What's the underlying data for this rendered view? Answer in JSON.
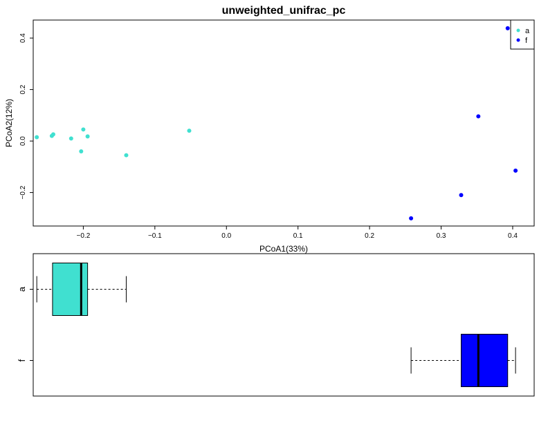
{
  "chart_data": [
    {
      "type": "scatter",
      "title": "unweighted_unifrac_pc",
      "xlabel": "PCoA1(33%)",
      "ylabel": "PCoA2(12%)",
      "xlim": [
        -0.27,
        0.43
      ],
      "ylim": [
        -0.33,
        0.47
      ],
      "xticks": [
        -0.2,
        -0.1,
        0.0,
        0.1,
        0.2,
        0.3,
        0.4
      ],
      "xtick_labels": [
        "−0.2",
        "−0.1",
        "0.0",
        "0.1",
        "0.2",
        "0.3",
        "0.4"
      ],
      "yticks": [
        -0.2,
        0.0,
        0.2,
        0.4
      ],
      "ytick_labels": [
        "−0.2",
        "0.0",
        "0.2",
        "0.4"
      ],
      "legend_position": "top-right",
      "grid": false,
      "series": [
        {
          "name": "a",
          "color": "#40E0D0",
          "points": [
            [
              -0.265,
              0.015
            ],
            [
              -0.244,
              0.02
            ],
            [
              -0.242,
              0.026
            ],
            [
              -0.217,
              0.01
            ],
            [
              -0.203,
              -0.04
            ],
            [
              -0.2,
              0.045
            ],
            [
              -0.194,
              0.018
            ],
            [
              -0.14,
              -0.055
            ],
            [
              -0.052,
              0.04
            ]
          ]
        },
        {
          "name": "f",
          "color": "#0000FF",
          "points": [
            [
              0.258,
              -0.3
            ],
            [
              0.328,
              -0.21
            ],
            [
              0.352,
              0.096
            ],
            [
              0.393,
              0.438
            ],
            [
              0.404,
              -0.115
            ]
          ]
        }
      ]
    },
    {
      "type": "boxplot",
      "orientation": "horizontal",
      "xlim": [
        -0.27,
        0.43
      ],
      "categories": [
        "a",
        "f"
      ],
      "boxes": [
        {
          "category": "a",
          "color": "#40E0D0",
          "min": -0.265,
          "q1": -0.243,
          "median": -0.203,
          "q3": -0.194,
          "max": -0.14
        },
        {
          "category": "f",
          "color": "#0000FF",
          "min": 0.258,
          "q1": 0.328,
          "median": 0.352,
          "q3": 0.393,
          "max": 0.404
        }
      ]
    }
  ]
}
